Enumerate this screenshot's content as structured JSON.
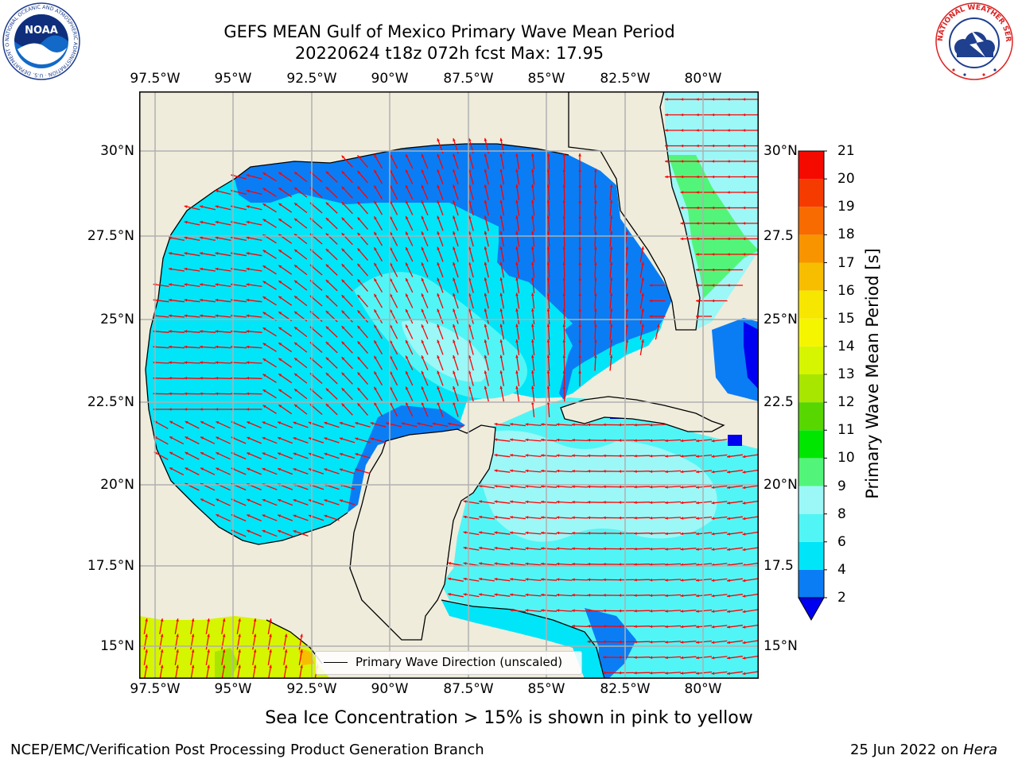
{
  "title": {
    "line1": "GEFS MEAN Gulf of Mexico Primary Wave Mean Period",
    "line2": "20220624 t18z 072h fcst   Max: 17.95"
  },
  "axes": {
    "lon_labels": [
      "97.5°W",
      "95°W",
      "92.5°W",
      "90°W",
      "87.5°W",
      "85°W",
      "82.5°W",
      "80°W"
    ],
    "lat_labels_left": [
      "30°N",
      "27.5°N",
      "25°N",
      "22.5°N",
      "20°N",
      "17.5°N",
      "15°N"
    ],
    "lat_labels_right": [
      "30°N",
      "27.5",
      "25°N",
      "22.5",
      "20°N",
      "17.5",
      "15°N"
    ]
  },
  "colorbar": {
    "title": "Primary Wave Mean Period [s]",
    "ticks": [
      "2",
      "4",
      "6",
      "8",
      "9",
      "10",
      "11",
      "12",
      "13",
      "14",
      "15",
      "16",
      "17",
      "18",
      "19",
      "20",
      "21"
    ],
    "colors": [
      "#0a7df5",
      "#00e5f7",
      "#52f5f5",
      "#9cf7f7",
      "#52f57a",
      "#00e600",
      "#57d600",
      "#a8e600",
      "#d6f500",
      "#f5f500",
      "#f7e600",
      "#f7be00",
      "#f79400",
      "#f76b00",
      "#f53b00",
      "#f50a00"
    ],
    "under_color": "#0000f0"
  },
  "legend": {
    "label": "Primary Wave Direction (unscaled)"
  },
  "note": "Sea Ice Concentration > 15% is shown in pink to yellow",
  "footer": {
    "left": "NCEP/EMC/Verification Post Processing Product Generation Branch",
    "date": "25 Jun 2022 on ",
    "machine": "Hera"
  },
  "logos": {
    "noaa": "NOAA",
    "noaa_ring": "NATIONAL OCEANIC AND ATMOSPHERIC ADMINISTRATION · U.S. DEPARTMENT OF COMMERCE",
    "nws_ring": "NATIONAL WEATHER SERVICE"
  },
  "colors": {
    "land": "#efecdc",
    "arrow": "#ff0000",
    "grid": "#b0b0b0"
  }
}
